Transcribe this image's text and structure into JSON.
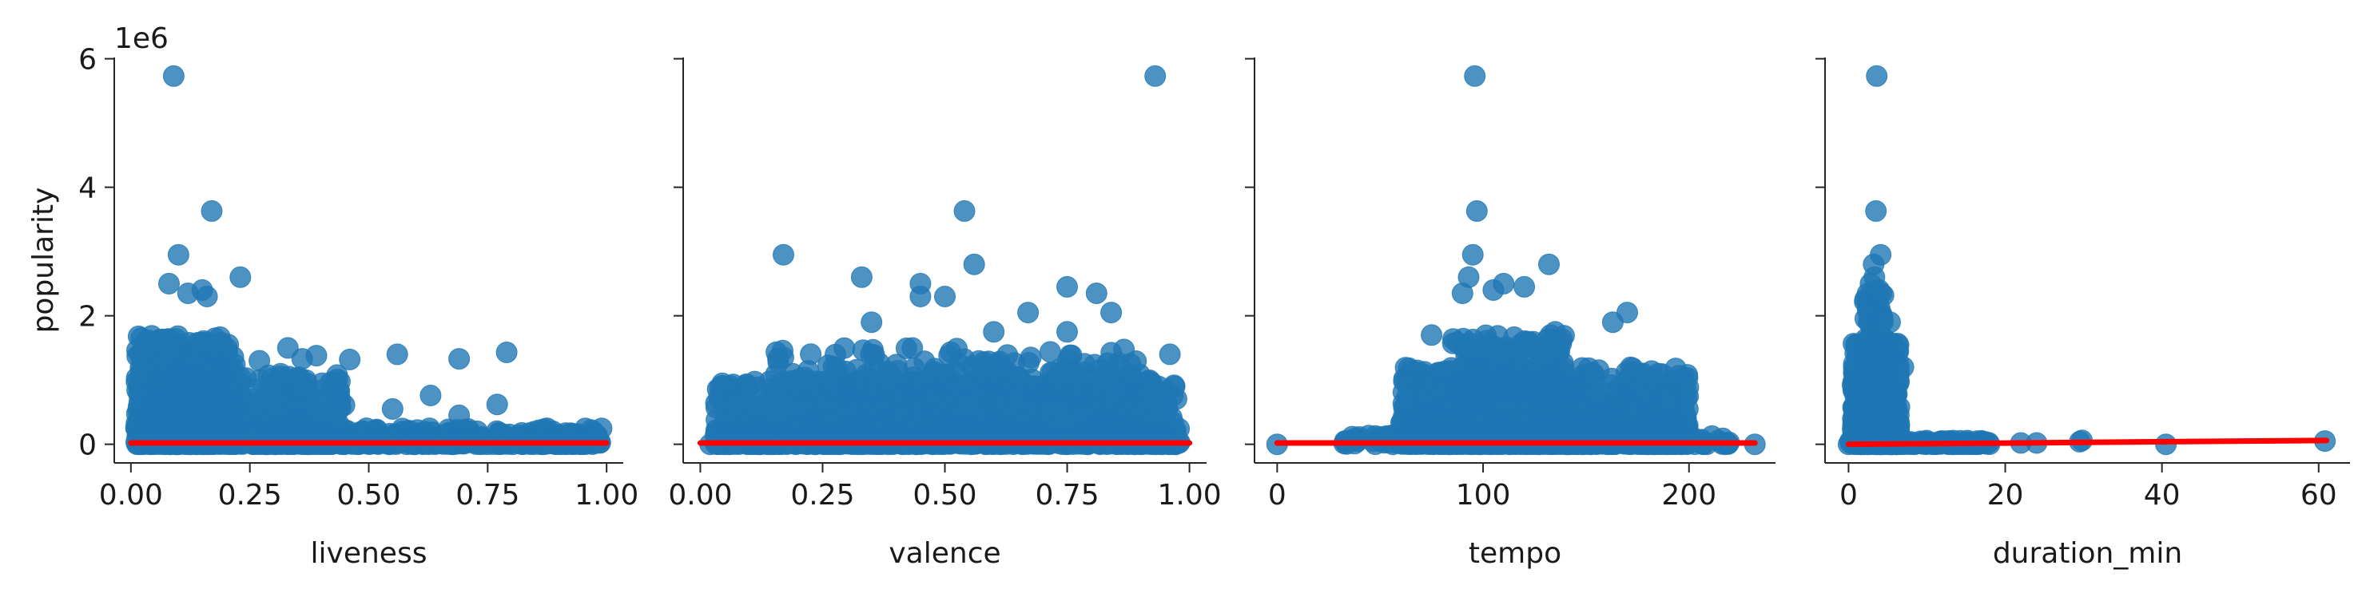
{
  "chart_data": [
    {
      "type": "scatter",
      "xlabel": "liveness",
      "ylabel": "popularity",
      "y_scale_note": "1e6",
      "xlim": [
        -0.035,
        1.035
      ],
      "ylim": [
        -0.29,
        6.02
      ],
      "xticks": [
        0.0,
        0.25,
        0.5,
        0.75,
        1.0
      ],
      "xtick_labels": [
        "0.00",
        "0.25",
        "0.50",
        "0.75",
        "1.00"
      ],
      "yticks": [
        0,
        2,
        4,
        6
      ],
      "ytick_labels": [
        "0",
        "2",
        "4",
        "6"
      ],
      "series": [
        {
          "color": "#1f77b4",
          "cluster": [
            {
              "x_from": 0.01,
              "x_to": 0.22,
              "y_from": 0,
              "y_to": 1.7,
              "n": 700
            },
            {
              "x_from": 0.08,
              "x_to": 0.45,
              "y_from": 0,
              "y_to": 1.1,
              "n": 500
            },
            {
              "x_from": 0.3,
              "x_to": 0.99,
              "y_from": 0,
              "y_to": 0.25,
              "n": 450
            }
          ],
          "points": [
            [
              0.09,
              5.73
            ],
            [
              0.17,
              3.63
            ],
            [
              0.1,
              2.95
            ],
            [
              0.23,
              2.6
            ],
            [
              0.08,
              2.5
            ],
            [
              0.15,
              2.4
            ],
            [
              0.12,
              2.35
            ],
            [
              0.16,
              2.3
            ],
            [
              0.36,
              1.33
            ],
            [
              0.39,
              1.38
            ],
            [
              0.46,
              1.32
            ],
            [
              0.56,
              1.4
            ],
            [
              0.69,
              1.33
            ],
            [
              0.79,
              1.43
            ],
            [
              0.63,
              0.76
            ],
            [
              0.55,
              0.55
            ],
            [
              0.77,
              0.62
            ],
            [
              0.69,
              0.45
            ],
            [
              0.27,
              1.3
            ],
            [
              0.33,
              1.5
            ],
            [
              0.03,
              0.6
            ]
          ]
        }
      ],
      "regression": {
        "color": "#ff0000",
        "x": [
          0.0,
          1.0
        ],
        "y": [
          0.02,
          0.02
        ]
      }
    },
    {
      "type": "scatter",
      "xlabel": "valence",
      "ylabel": "",
      "xlim": [
        -0.035,
        1.035
      ],
      "ylim": [
        -0.29,
        6.02
      ],
      "xticks": [
        0.0,
        0.25,
        0.5,
        0.75,
        1.0
      ],
      "xtick_labels": [
        "0.00",
        "0.25",
        "0.50",
        "0.75",
        "1.00"
      ],
      "yticks": [
        0,
        2,
        4,
        6
      ],
      "series": [
        {
          "color": "#1f77b4",
          "cluster": [
            {
              "x_from": 0.03,
              "x_to": 0.98,
              "y_from": 0,
              "y_to": 1.0,
              "n": 1400
            },
            {
              "x_from": 0.15,
              "x_to": 0.9,
              "y_from": 0.8,
              "y_to": 1.5,
              "n": 250
            }
          ],
          "points": [
            [
              0.93,
              5.73
            ],
            [
              0.54,
              3.63
            ],
            [
              0.17,
              2.95
            ],
            [
              0.33,
              2.6
            ],
            [
              0.45,
              2.5
            ],
            [
              0.56,
              2.8
            ],
            [
              0.5,
              2.3
            ],
            [
              0.45,
              2.3
            ],
            [
              0.75,
              2.45
            ],
            [
              0.81,
              2.35
            ],
            [
              0.84,
              2.05
            ],
            [
              0.67,
              2.05
            ],
            [
              0.6,
              1.75
            ],
            [
              0.75,
              1.75
            ],
            [
              0.02,
              0.0
            ],
            [
              0.98,
              0.03
            ],
            [
              0.96,
              1.4
            ],
            [
              0.35,
              1.9
            ]
          ]
        }
      ],
      "regression": {
        "color": "#ff0000",
        "x": [
          0.0,
          1.0
        ],
        "y": [
          0.02,
          0.02
        ]
      }
    },
    {
      "type": "scatter",
      "xlabel": "tempo",
      "ylabel": "",
      "xlim": [
        -11,
        242
      ],
      "ylim": [
        -0.29,
        6.02
      ],
      "xticks": [
        0,
        100,
        200
      ],
      "xtick_labels": [
        "0",
        "100",
        "200"
      ],
      "yticks": [
        0,
        2,
        4,
        6
      ],
      "series": [
        {
          "color": "#1f77b4",
          "cluster": [
            {
              "x_from": 60,
              "x_to": 200,
              "y_from": 0,
              "y_to": 1.2,
              "n": 1300
            },
            {
              "x_from": 85,
              "x_to": 140,
              "y_from": 0.8,
              "y_to": 1.7,
              "n": 250
            },
            {
              "x_from": 30,
              "x_to": 220,
              "y_from": 0,
              "y_to": 0.15,
              "n": 200
            }
          ],
          "points": [
            [
              96,
              5.73
            ],
            [
              97,
              3.63
            ],
            [
              95,
              2.95
            ],
            [
              90,
              2.35
            ],
            [
              93,
              2.6
            ],
            [
              110,
              2.5
            ],
            [
              120,
              2.45
            ],
            [
              105,
              2.4
            ],
            [
              132,
              2.8
            ],
            [
              170,
              2.05
            ],
            [
              163,
              1.9
            ],
            [
              135,
              1.75
            ],
            [
              75,
              1.7
            ],
            [
              0,
              0.0
            ],
            [
              232,
              0.0
            ],
            [
              195,
              1.0
            ],
            [
              65,
              0.55
            ]
          ]
        }
      ],
      "regression": {
        "color": "#ff0000",
        "x": [
          0,
          232
        ],
        "y": [
          0.02,
          0.02
        ]
      }
    },
    {
      "type": "scatter",
      "xlabel": "duration_min",
      "ylabel": "",
      "xlim": [
        -3.0,
        64.0
      ],
      "ylim": [
        -0.29,
        6.02
      ],
      "xticks": [
        0,
        20,
        40,
        60
      ],
      "xtick_labels": [
        "0",
        "20",
        "40",
        "60"
      ],
      "yticks": [
        0,
        2,
        4,
        6
      ],
      "series": [
        {
          "color": "#1f77b4",
          "cluster": [
            {
              "x_from": 0.5,
              "x_to": 6.5,
              "y_from": 0,
              "y_to": 1.6,
              "n": 900
            },
            {
              "x_from": 2.0,
              "x_to": 4.5,
              "y_from": 1.0,
              "y_to": 2.4,
              "n": 150
            },
            {
              "x_from": 0.0,
              "x_to": 18.0,
              "y_from": 0,
              "y_to": 0.06,
              "n": 150
            }
          ],
          "points": [
            [
              3.6,
              5.73
            ],
            [
              3.5,
              3.63
            ],
            [
              4.1,
              2.95
            ],
            [
              3.2,
              2.8
            ],
            [
              3.3,
              2.6
            ],
            [
              2.8,
              2.5
            ],
            [
              3.9,
              2.4
            ],
            [
              4.2,
              2.35
            ],
            [
              7.0,
              1.2
            ],
            [
              5.3,
              1.9
            ],
            [
              22.0,
              0.02
            ],
            [
              24.0,
              0.02
            ],
            [
              29.5,
              0.04
            ],
            [
              29.8,
              0.06
            ],
            [
              40.5,
              0.0
            ],
            [
              60.8,
              0.05
            ],
            [
              17.0,
              0.03
            ],
            [
              12.0,
              0.05
            ],
            [
              0.0,
              0.0
            ]
          ]
        }
      ],
      "regression": {
        "color": "#ff0000",
        "x": [
          0.0,
          61.0
        ],
        "y": [
          0.0,
          0.06
        ]
      }
    }
  ]
}
